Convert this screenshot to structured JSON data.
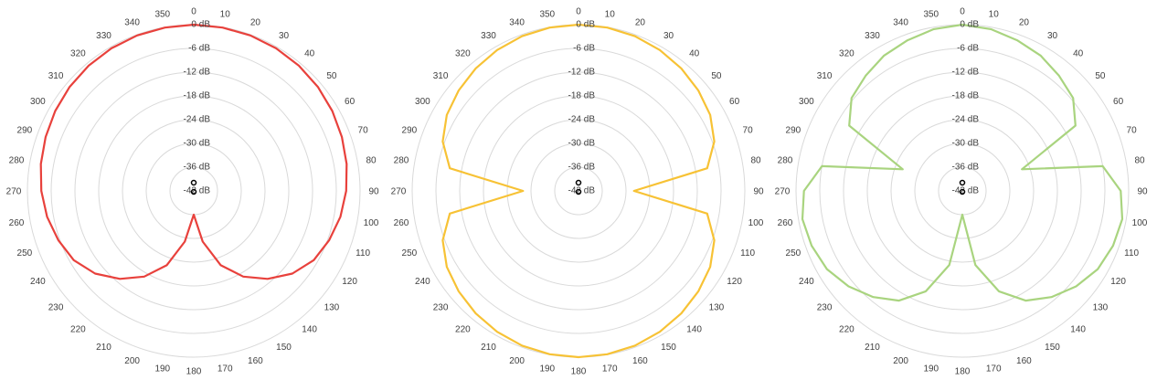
{
  "chart_data": [
    {
      "type": "polar",
      "theta": [
        0,
        10,
        20,
        30,
        40,
        50,
        60,
        70,
        80,
        90,
        100,
        110,
        120,
        130,
        140,
        150,
        160,
        170,
        180,
        190,
        200,
        210,
        220,
        230,
        240,
        250,
        260,
        270,
        280,
        290,
        300,
        310,
        320,
        330,
        340,
        350
      ],
      "rlim": [
        -42,
        0
      ],
      "rticks": [
        {
          "value": 0,
          "label": "0 dB"
        },
        {
          "value": -6,
          "label": "-6 dB"
        },
        {
          "value": -12,
          "label": "-12 dB"
        },
        {
          "value": -18,
          "label": "-18 dB"
        },
        {
          "value": -24,
          "label": "-24 dB"
        },
        {
          "value": -30,
          "label": "-30 dB"
        },
        {
          "value": -36,
          "label": "-36 dB"
        },
        {
          "value": -42,
          "label": "-42 dB"
        }
      ],
      "grid": true,
      "series": [
        {
          "color": "#e8413c",
          "values": [
            0,
            -0.1,
            -0.2,
            -0.4,
            -0.7,
            -1.1,
            -1.6,
            -2.2,
            -2.8,
            -3.5,
            -4.4,
            -5.6,
            -7,
            -9.5,
            -13,
            -17,
            -22,
            -29,
            -36,
            -29,
            -22,
            -17,
            -13,
            -9.5,
            -7,
            -5.6,
            -4.4,
            -3.5,
            -2.8,
            -2.2,
            -1.6,
            -1.1,
            -0.7,
            -0.4,
            -0.2,
            -0.1
          ]
        }
      ]
    },
    {
      "type": "polar",
      "theta": [
        0,
        10,
        20,
        30,
        40,
        50,
        60,
        70,
        80,
        90,
        100,
        110,
        120,
        130,
        140,
        150,
        160,
        170,
        180,
        190,
        200,
        210,
        220,
        230,
        240,
        250,
        260,
        270,
        280,
        290,
        300,
        310,
        320,
        330,
        340,
        350
      ],
      "rlim": [
        -42,
        0
      ],
      "rticks": [
        {
          "value": 0,
          "label": "0 dB"
        },
        {
          "value": -6,
          "label": "-6 dB"
        },
        {
          "value": -12,
          "label": "-12 dB"
        },
        {
          "value": -18,
          "label": "-18 dB"
        },
        {
          "value": -24,
          "label": "-24 dB"
        },
        {
          "value": -30,
          "label": "-30 dB"
        },
        {
          "value": -36,
          "label": "-36 dB"
        },
        {
          "value": -42,
          "label": "-42 dB"
        }
      ],
      "grid": true,
      "series": [
        {
          "color": "#f7c235",
          "values": [
            0,
            -0.1,
            -0.4,
            -0.9,
            -1.6,
            -2.5,
            -3.6,
            -5.5,
            -9,
            -28,
            -9,
            -5.5,
            -3.6,
            -2.5,
            -1.6,
            -0.9,
            -0.4,
            -0.1,
            0,
            -0.1,
            -0.4,
            -0.9,
            -1.6,
            -2.5,
            -3.6,
            -5.5,
            -9,
            -28,
            -9,
            -5.5,
            -3.6,
            -2.5,
            -1.6,
            -0.9,
            -0.4,
            -0.1
          ]
        }
      ]
    },
    {
      "type": "polar",
      "theta": [
        0,
        10,
        20,
        30,
        40,
        50,
        60,
        70,
        80,
        90,
        100,
        110,
        120,
        130,
        140,
        150,
        160,
        170,
        180,
        190,
        200,
        210,
        220,
        230,
        240,
        250,
        260,
        270,
        280,
        290,
        300,
        310,
        320,
        330,
        340,
        350
      ],
      "rlim": [
        -42,
        0
      ],
      "rticks": [
        {
          "value": 0,
          "label": "0 dB"
        },
        {
          "value": -6,
          "label": "-6 dB"
        },
        {
          "value": -12,
          "label": "-12 dB"
        },
        {
          "value": -18,
          "label": "-18 dB"
        },
        {
          "value": -24,
          "label": "-24 dB"
        },
        {
          "value": -30,
          "label": "-30 dB"
        },
        {
          "value": -36,
          "label": "-36 dB"
        },
        {
          "value": -42,
          "label": "-42 dB"
        }
      ],
      "grid": true,
      "series": [
        {
          "color": "#a9d47f",
          "values": [
            0,
            -0.5,
            -1.5,
            -2.5,
            -4,
            -5.5,
            -9,
            -26,
            -6,
            -2,
            -1,
            -1.5,
            -2.5,
            -4.5,
            -7,
            -10,
            -15,
            -23,
            -36,
            -23,
            -15,
            -10,
            -7,
            -4.5,
            -2.5,
            -1.5,
            -1,
            -2,
            -6,
            -26,
            -9,
            -5.5,
            -4,
            -2.5,
            -1.5,
            -0.5
          ]
        }
      ]
    }
  ]
}
